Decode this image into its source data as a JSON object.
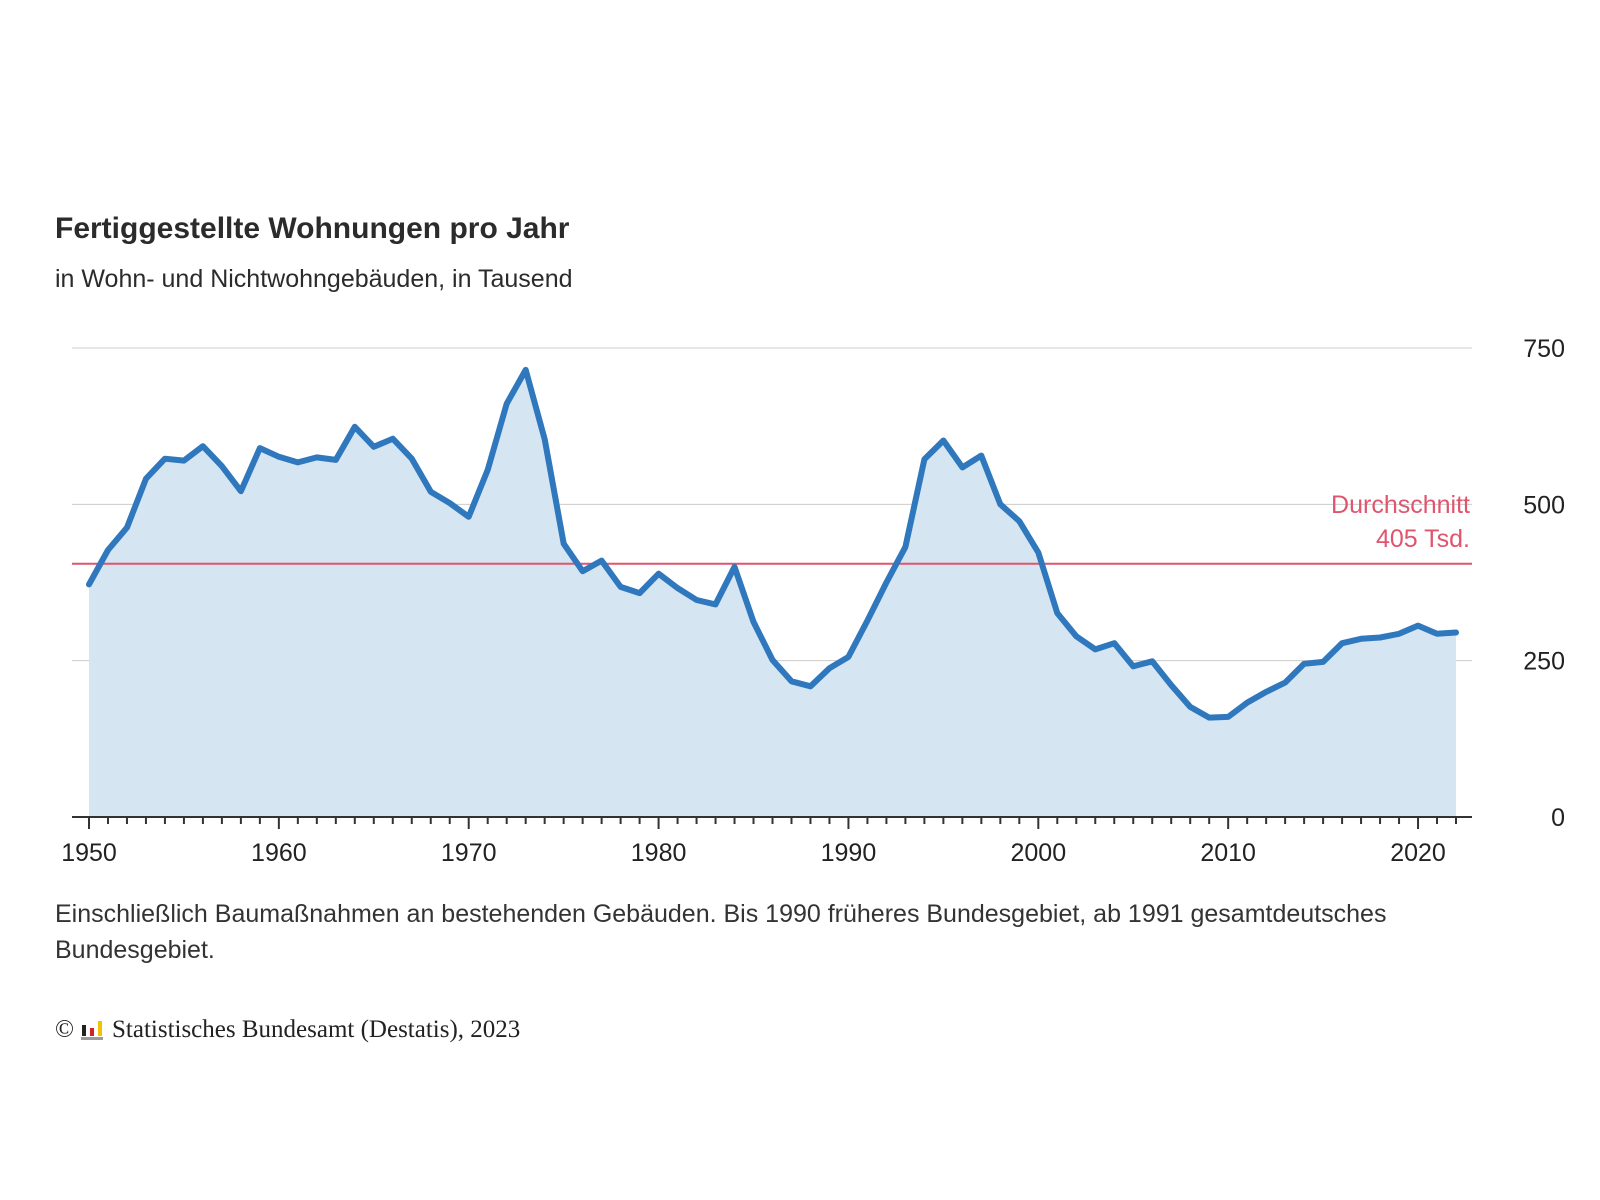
{
  "colors": {
    "line": "#2f78bd",
    "area": "#d6e5f2",
    "average": "#e0546e",
    "grid": "#cccccc",
    "axis": "#333333"
  },
  "chart_data": {
    "type": "area",
    "title": "Fertiggestellte Wohnungen pro Jahr",
    "subtitle": "in Wohn- und Nichtwohngebäuden, in Tausend",
    "xlabel": "",
    "ylabel": "",
    "xlim": [
      1950,
      2022
    ],
    "ylim": [
      0,
      750
    ],
    "x_ticks": [
      1950,
      1960,
      1970,
      1980,
      1990,
      2000,
      2010,
      2020
    ],
    "y_ticks": [
      0,
      250,
      500,
      750
    ],
    "y_axis_side": "right",
    "grid": true,
    "average": {
      "value": 405,
      "label_line1": "Durchschnitt",
      "label_line2": "405 Tsd."
    },
    "x": [
      1950,
      1951,
      1952,
      1953,
      1954,
      1955,
      1956,
      1957,
      1958,
      1959,
      1960,
      1961,
      1962,
      1963,
      1964,
      1965,
      1966,
      1967,
      1968,
      1969,
      1970,
      1971,
      1972,
      1973,
      1974,
      1975,
      1976,
      1977,
      1978,
      1979,
      1980,
      1981,
      1982,
      1983,
      1984,
      1985,
      1986,
      1987,
      1988,
      1989,
      1990,
      1991,
      1992,
      1993,
      1994,
      1995,
      1996,
      1997,
      1998,
      1999,
      2000,
      2001,
      2002,
      2003,
      2004,
      2005,
      2006,
      2007,
      2008,
      2009,
      2010,
      2011,
      2012,
      2013,
      2014,
      2015,
      2016,
      2017,
      2018,
      2019,
      2020,
      2021,
      2022
    ],
    "series": [
      {
        "values": [
          372,
          427,
          463,
          541,
          573,
          570,
          593,
          561,
          521,
          590,
          576,
          567,
          575,
          571,
          624,
          592,
          605,
          573,
          520,
          502,
          480,
          555,
          661,
          715,
          604,
          437,
          393,
          410,
          368,
          358,
          389,
          366,
          347,
          340,
          400,
          312,
          251,
          217,
          209,
          238,
          256,
          314,
          375,
          432,
          572,
          602,
          559,
          578,
          500,
          473,
          423,
          326,
          289,
          268,
          278,
          241,
          249,
          211,
          176,
          159,
          160,
          183,
          200,
          215,
          245,
          248,
          278,
          285,
          287,
          293,
          306,
          293,
          295
        ]
      }
    ]
  },
  "footnote": "Einschließlich Baumaßnahmen an bestehenden Gebäuden. Bis 1990 früheres Bundesgebiet, ab 1991 gesamtdeutsches Bundesgebiet.",
  "source": {
    "copyright_symbol": "©",
    "text": "Statistisches Bundesamt (Destatis), 2023",
    "logo": "destatis-logo-icon"
  }
}
